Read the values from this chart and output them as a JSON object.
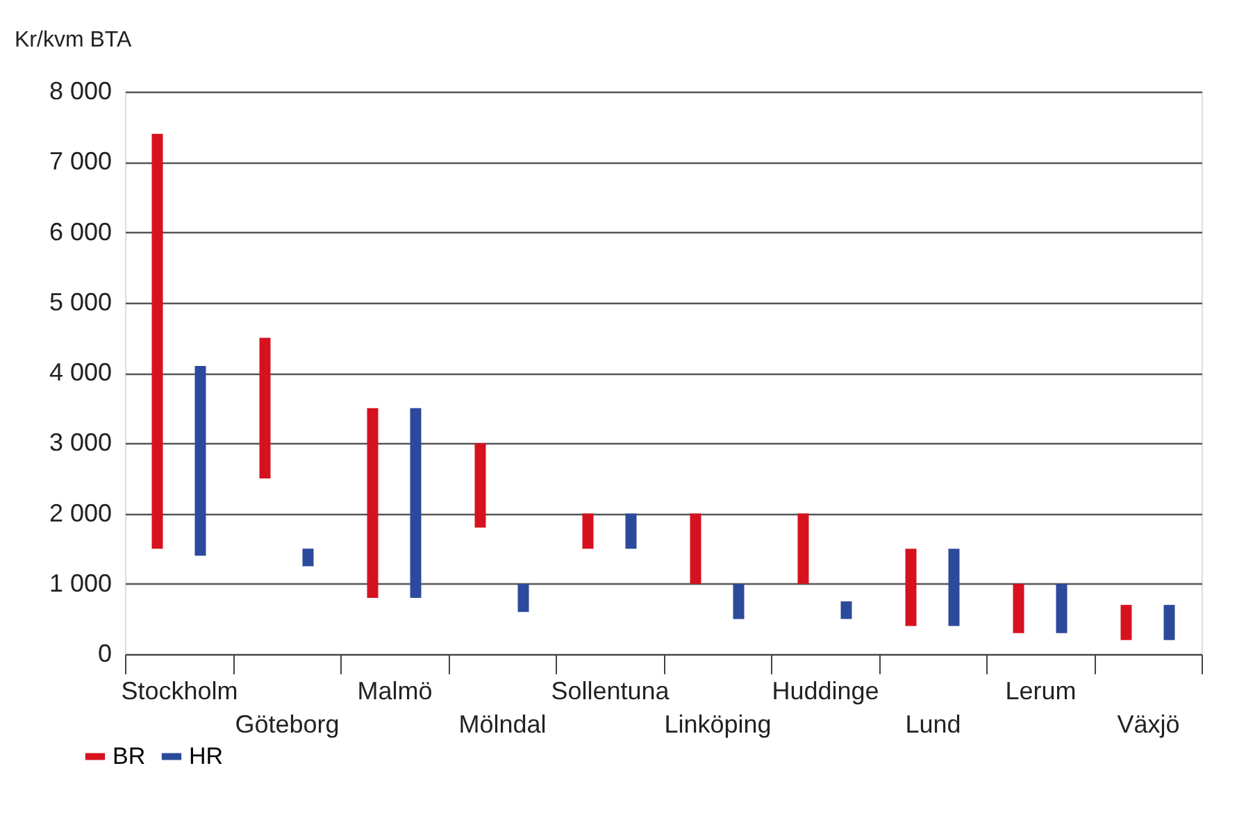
{
  "chart_data": {
    "type": "bar",
    "ylabel": "Kr/kvm BTA",
    "categories": [
      "Stockholm",
      "Göteborg",
      "Malmö",
      "Mölndal",
      "Sollentuna",
      "Linköping",
      "Huddinge",
      "Lund",
      "Lerum",
      "Växjö"
    ],
    "series": [
      {
        "name": "BR",
        "color": "#d7121f",
        "base": [
          1500,
          2500,
          800,
          1800,
          1500,
          1000,
          1000,
          400,
          300,
          200
        ],
        "values": [
          5900,
          2000,
          2700,
          1200,
          500,
          1000,
          1000,
          1100,
          700,
          500
        ]
      },
      {
        "name": "HR",
        "color": "#2c4a9c",
        "base": [
          1400,
          1250,
          800,
          600,
          1500,
          500,
          500,
          400,
          300,
          200
        ],
        "values": [
          2700,
          250,
          2700,
          400,
          500,
          500,
          250,
          1100,
          700,
          500
        ]
      }
    ],
    "ylim": [
      0,
      8000
    ],
    "yticks": [
      0,
      {
        "value": 1000,
        "label": "1 000"
      },
      {
        "value": 2000,
        "label": "2 000"
      },
      {
        "value": 3000,
        "label": "3 000"
      },
      {
        "value": 4000,
        "label": "4 000"
      },
      {
        "value": 5000,
        "label": "5 000"
      },
      {
        "value": 6000,
        "label": "6 000"
      },
      {
        "value": 7000,
        "label": "7 000"
      },
      {
        "value": 8000,
        "label": "8 000"
      }
    ],
    "grid": "y",
    "legend": "bottom"
  }
}
